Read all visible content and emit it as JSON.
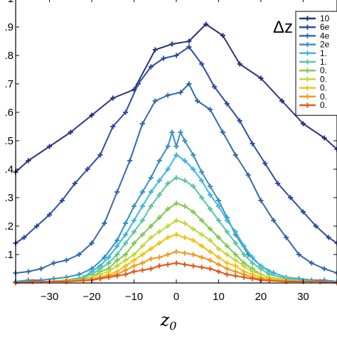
{
  "chart_data": {
    "type": "line",
    "xlabel": "z0",
    "xlabel_main": "z",
    "xlabel_sub": "0",
    "ylabel": "",
    "xlim": [
      -38,
      38
    ],
    "ylim": [
      0,
      1.0
    ],
    "x_ticks": [
      -30,
      -20,
      -10,
      0,
      10,
      20,
      30
    ],
    "x_tick_labels": [
      "−30",
      "−20",
      "−10",
      "0",
      "10",
      "20",
      "30"
    ],
    "y_ticks": [
      0.1,
      0.2,
      0.3,
      0.4,
      0.5,
      0.6,
      0.7,
      0.8,
      0.9,
      1.0
    ],
    "y_tick_labels": [
      ".1",
      ".2",
      ".3",
      ".4",
      ".5",
      ".6",
      ".7",
      ".8",
      ".9",
      "1"
    ],
    "grid": false,
    "legend": {
      "title": "Δz",
      "placement": "top-right"
    },
    "series": [
      {
        "name": "10",
        "color": "#2b3580",
        "marker": "+",
        "x": [
          -38,
          -35,
          -30,
          -25,
          -20,
          -15,
          -10,
          -5,
          -1,
          3,
          7,
          11,
          15,
          20,
          25,
          30,
          35,
          38
        ],
        "y": [
          0.39,
          0.43,
          0.48,
          0.53,
          0.59,
          0.65,
          0.68,
          0.82,
          0.84,
          0.85,
          0.91,
          0.87,
          0.77,
          0.72,
          0.64,
          0.56,
          0.51,
          0.47
        ]
      },
      {
        "name": "6e",
        "color": "#2f4da0",
        "marker": "+",
        "x": [
          -38,
          -36,
          -33,
          -30,
          -27,
          -24,
          -21,
          -18,
          -15,
          -12,
          -9,
          -6,
          -3,
          0,
          3,
          6,
          9,
          12,
          15,
          18,
          21,
          24,
          27,
          30,
          33,
          36,
          38
        ],
        "y": [
          0.14,
          0.16,
          0.2,
          0.24,
          0.29,
          0.35,
          0.4,
          0.45,
          0.55,
          0.6,
          0.7,
          0.76,
          0.79,
          0.8,
          0.83,
          0.77,
          0.69,
          0.63,
          0.57,
          0.49,
          0.42,
          0.35,
          0.3,
          0.25,
          0.2,
          0.16,
          0.14
        ]
      },
      {
        "name": "4e",
        "color": "#3569ab",
        "marker": "+",
        "x": [
          -38,
          -35,
          -32,
          -29,
          -26,
          -23,
          -20,
          -17,
          -14,
          -11,
          -8,
          -5,
          -2,
          1,
          3,
          5,
          8,
          11,
          14,
          17,
          20,
          23,
          26,
          29,
          32,
          35,
          38
        ],
        "y": [
          0.035,
          0.04,
          0.05,
          0.07,
          0.08,
          0.1,
          0.14,
          0.21,
          0.32,
          0.43,
          0.56,
          0.64,
          0.66,
          0.67,
          0.7,
          0.64,
          0.61,
          0.53,
          0.45,
          0.38,
          0.29,
          0.22,
          0.16,
          0.1,
          0.07,
          0.05,
          0.035
        ]
      },
      {
        "name": "2e",
        "color": "#3a8fc4",
        "marker": "+",
        "x": [
          -38,
          -35,
          -32,
          -29,
          -26,
          -23,
          -20,
          -17,
          -14,
          -12,
          -10,
          -8,
          -6,
          -4,
          -2,
          -1,
          0,
          1,
          2,
          4,
          6,
          8,
          10,
          12,
          14,
          17,
          20,
          23,
          26,
          29,
          32,
          35,
          38
        ],
        "y": [
          0.005,
          0.01,
          0.01,
          0.015,
          0.02,
          0.03,
          0.05,
          0.09,
          0.15,
          0.21,
          0.27,
          0.32,
          0.37,
          0.43,
          0.48,
          0.53,
          0.48,
          0.53,
          0.5,
          0.45,
          0.39,
          0.34,
          0.29,
          0.23,
          0.17,
          0.1,
          0.06,
          0.035,
          0.02,
          0.015,
          0.01,
          0.01,
          0.005
        ]
      },
      {
        "name": "1.",
        "color": "#40b6dd",
        "marker": "+",
        "x": [
          -38,
          -34,
          -30,
          -26,
          -22,
          -20,
          -18,
          -16,
          -14,
          -12,
          -10,
          -8,
          -6,
          -4,
          -2,
          0,
          2,
          4,
          6,
          8,
          10,
          12,
          14,
          16,
          18,
          20,
          22,
          26,
          30,
          34,
          38
        ],
        "y": [
          0.0,
          0.005,
          0.005,
          0.01,
          0.02,
          0.04,
          0.06,
          0.09,
          0.13,
          0.17,
          0.22,
          0.27,
          0.32,
          0.36,
          0.4,
          0.45,
          0.43,
          0.4,
          0.36,
          0.31,
          0.27,
          0.22,
          0.18,
          0.13,
          0.09,
          0.06,
          0.04,
          0.02,
          0.01,
          0.005,
          0.0
        ]
      },
      {
        "name": "1.",
        "color": "#5cc6a2",
        "marker": "+",
        "x": [
          -38,
          -34,
          -30,
          -26,
          -22,
          -20,
          -18,
          -16,
          -14,
          -12,
          -10,
          -8,
          -6,
          -4,
          -2,
          0,
          2,
          4,
          6,
          8,
          10,
          12,
          14,
          16,
          18,
          20,
          22,
          26,
          30,
          34,
          38
        ],
        "y": [
          0.0,
          0.005,
          0.005,
          0.01,
          0.02,
          0.03,
          0.05,
          0.07,
          0.1,
          0.14,
          0.18,
          0.22,
          0.27,
          0.31,
          0.35,
          0.37,
          0.36,
          0.34,
          0.3,
          0.26,
          0.22,
          0.18,
          0.14,
          0.1,
          0.07,
          0.05,
          0.03,
          0.015,
          0.01,
          0.005,
          0.0
        ]
      },
      {
        "name": "0.",
        "color": "#86c85a",
        "marker": "+",
        "x": [
          -38,
          -34,
          -30,
          -26,
          -22,
          -20,
          -18,
          -16,
          -14,
          -12,
          -10,
          -8,
          -6,
          -4,
          -2,
          0,
          2,
          4,
          6,
          8,
          10,
          12,
          14,
          16,
          18,
          20,
          22,
          26,
          30,
          34,
          38
        ],
        "y": [
          0.0,
          0.005,
          0.005,
          0.01,
          0.015,
          0.02,
          0.04,
          0.05,
          0.08,
          0.1,
          0.14,
          0.17,
          0.2,
          0.23,
          0.26,
          0.28,
          0.27,
          0.25,
          0.22,
          0.19,
          0.16,
          0.13,
          0.1,
          0.07,
          0.05,
          0.03,
          0.02,
          0.01,
          0.005,
          0.005,
          0.0
        ]
      },
      {
        "name": "0.",
        "color": "#c2d93f",
        "marker": "+",
        "x": [
          -38,
          -34,
          -30,
          -26,
          -22,
          -20,
          -18,
          -16,
          -14,
          -12,
          -10,
          -8,
          -6,
          -4,
          -2,
          0,
          2,
          4,
          6,
          8,
          10,
          12,
          14,
          16,
          18,
          20,
          22,
          26,
          30,
          34,
          38
        ],
        "y": [
          0.0,
          0.005,
          0.005,
          0.008,
          0.01,
          0.02,
          0.03,
          0.04,
          0.06,
          0.08,
          0.1,
          0.13,
          0.16,
          0.18,
          0.2,
          0.22,
          0.21,
          0.19,
          0.17,
          0.15,
          0.12,
          0.1,
          0.08,
          0.06,
          0.04,
          0.03,
          0.02,
          0.01,
          0.005,
          0.005,
          0.0
        ]
      },
      {
        "name": "0.",
        "color": "#f2c218",
        "marker": "+",
        "x": [
          -38,
          -34,
          -30,
          -26,
          -22,
          -20,
          -18,
          -16,
          -14,
          -12,
          -10,
          -8,
          -6,
          -4,
          -2,
          0,
          2,
          4,
          6,
          8,
          10,
          12,
          14,
          16,
          18,
          20,
          22,
          26,
          30,
          34,
          38
        ],
        "y": [
          0.0,
          0.005,
          0.005,
          0.008,
          0.01,
          0.015,
          0.02,
          0.03,
          0.04,
          0.06,
          0.08,
          0.1,
          0.12,
          0.14,
          0.16,
          0.17,
          0.16,
          0.15,
          0.13,
          0.11,
          0.09,
          0.07,
          0.06,
          0.04,
          0.03,
          0.02,
          0.015,
          0.008,
          0.005,
          0.005,
          0.0
        ]
      },
      {
        "name": "0.",
        "color": "#f39a1f",
        "marker": "+",
        "x": [
          -38,
          -34,
          -30,
          -26,
          -22,
          -20,
          -18,
          -16,
          -14,
          -12,
          -10,
          -8,
          -6,
          -4,
          -2,
          0,
          2,
          4,
          6,
          8,
          10,
          12,
          14,
          16,
          18,
          20,
          22,
          26,
          30,
          34,
          38
        ],
        "y": [
          0.0,
          0.005,
          0.005,
          0.008,
          0.01,
          0.012,
          0.02,
          0.025,
          0.03,
          0.045,
          0.06,
          0.07,
          0.085,
          0.09,
          0.1,
          0.11,
          0.105,
          0.1,
          0.09,
          0.08,
          0.065,
          0.05,
          0.04,
          0.03,
          0.02,
          0.015,
          0.01,
          0.008,
          0.005,
          0.005,
          0.0
        ]
      },
      {
        "name": "0.",
        "color": "#e05a1e",
        "marker": "+",
        "x": [
          -38,
          -34,
          -30,
          -26,
          -22,
          -20,
          -18,
          -16,
          -14,
          -12,
          -10,
          -8,
          -6,
          -4,
          -2,
          0,
          2,
          4,
          6,
          8,
          10,
          12,
          14,
          16,
          18,
          20,
          22,
          26,
          30,
          34,
          38
        ],
        "y": [
          0.0,
          0.005,
          0.005,
          0.005,
          0.008,
          0.01,
          0.015,
          0.02,
          0.025,
          0.03,
          0.04,
          0.045,
          0.05,
          0.06,
          0.065,
          0.07,
          0.065,
          0.06,
          0.055,
          0.05,
          0.04,
          0.03,
          0.025,
          0.02,
          0.015,
          0.01,
          0.008,
          0.005,
          0.005,
          0.005,
          0.0
        ]
      }
    ]
  }
}
